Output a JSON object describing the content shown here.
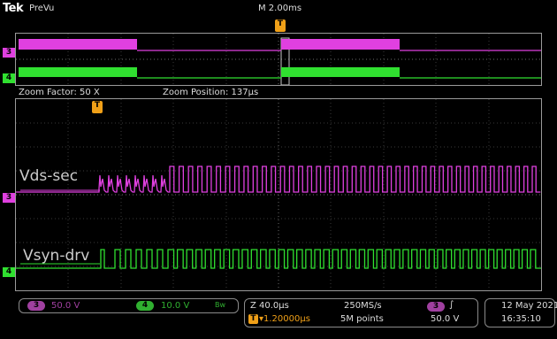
{
  "header": {
    "brand": "Tek",
    "mode": "PreVu",
    "timebase": "M 2.00ms",
    "trigger_marker": "T"
  },
  "zoom_info": {
    "factor": "Zoom Factor: 50 X",
    "position": "Zoom Position: 137µs"
  },
  "channels": [
    {
      "number": "3",
      "label": "Vds-sec",
      "scale": "50.0 V",
      "color": "#e040e0"
    },
    {
      "number": "4",
      "label": "Vsyn-drv",
      "scale": "10.0 V",
      "color": "#30e030"
    }
  ],
  "status": {
    "ch3_scale": "50.0 V",
    "ch4_scale": "10.0 V",
    "bw_symbol": "Bw",
    "zoom_time": "Z 40.0µs",
    "trigger_delay": "▾1.20000µs",
    "sample_rate": "250MS/s",
    "record_length": "5M points",
    "trig_source": "3",
    "trig_slope": "∫",
    "trig_level": "50.0 V",
    "date": "12 May 2021",
    "time": "16:35:10"
  }
}
